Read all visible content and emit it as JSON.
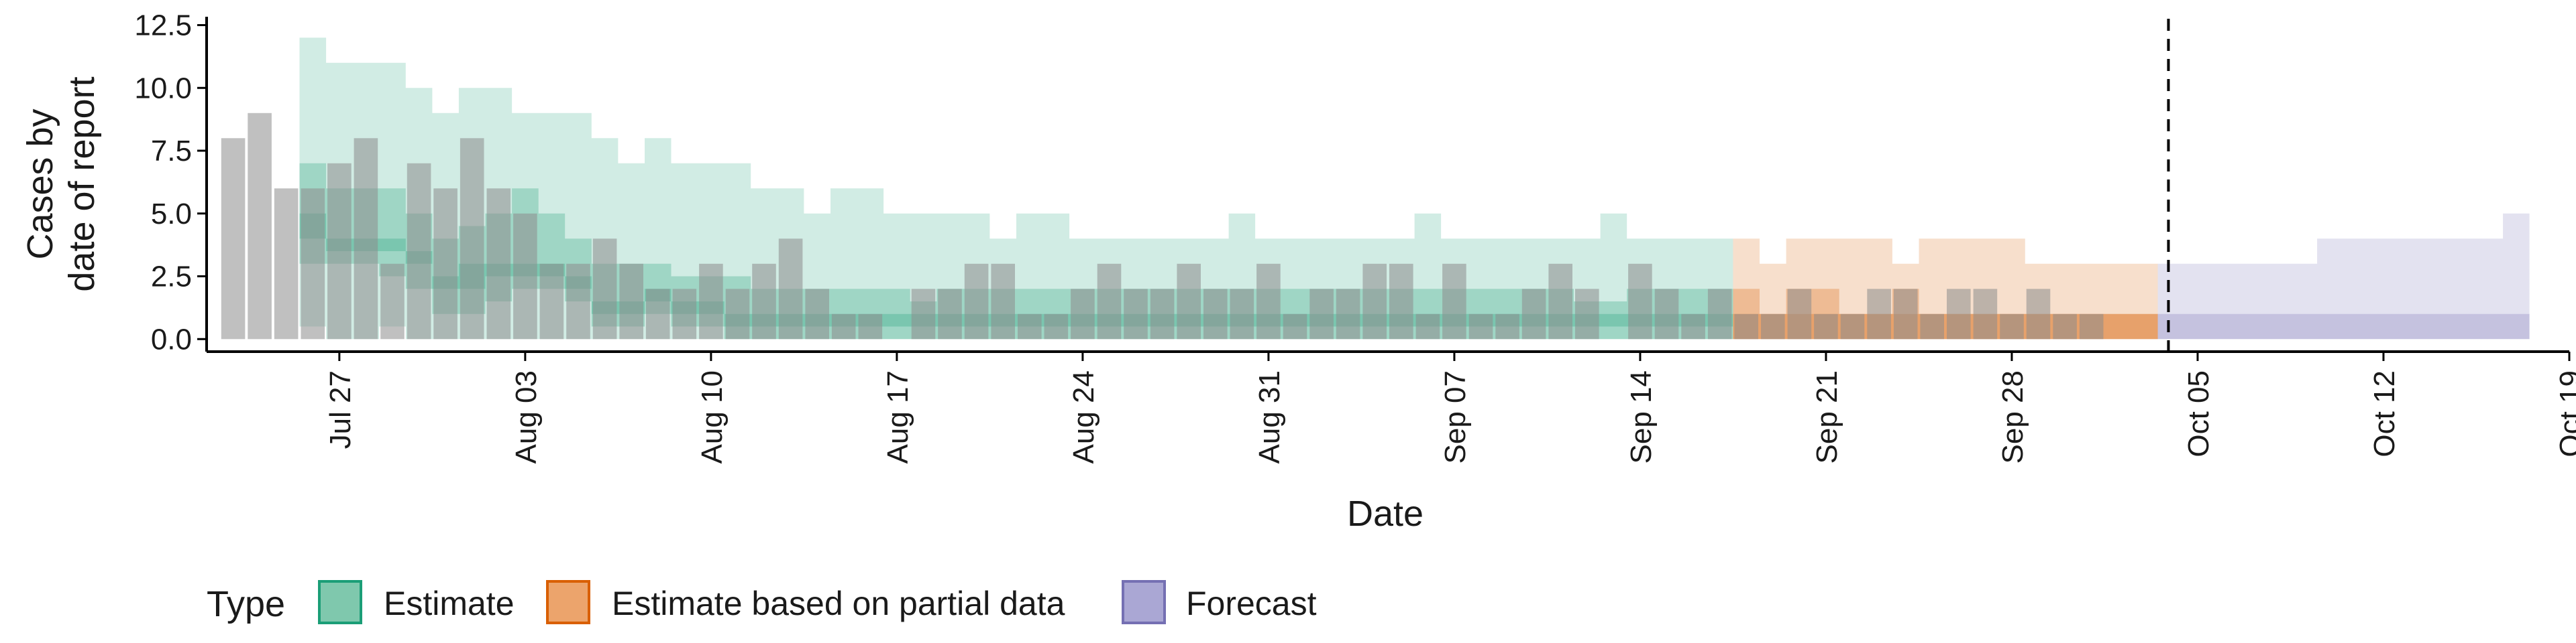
{
  "chart_data": {
    "type": "bar",
    "xlabel": "Date",
    "ylabel_lines": [
      "Cases by",
      "date of report"
    ],
    "ylim": [
      -0.5,
      12.7
    ],
    "yticks": [
      "0.0",
      "2.5",
      "5.0",
      "7.5",
      "10.0",
      "12.5"
    ],
    "x_start_date": "2020-07-23",
    "x_range_days": [
      -1.0,
      88.0
    ],
    "xticks": [
      {
        "day": 4,
        "label": "Jul 27"
      },
      {
        "day": 11,
        "label": "Aug 03"
      },
      {
        "day": 18,
        "label": "Aug 10"
      },
      {
        "day": 25,
        "label": "Aug 17"
      },
      {
        "day": 32,
        "label": "Aug 24"
      },
      {
        "day": 39,
        "label": "Aug 31"
      },
      {
        "day": 46,
        "label": "Sep 07"
      },
      {
        "day": 53,
        "label": "Sep 14"
      },
      {
        "day": 60,
        "label": "Sep 21"
      },
      {
        "day": 67,
        "label": "Sep 28"
      },
      {
        "day": 74,
        "label": "Oct 05"
      },
      {
        "day": 81,
        "label": "Oct 12"
      },
      {
        "day": 88,
        "label": "Oct 19"
      }
    ],
    "forecast_line_day": 72.9,
    "reported_cases": [
      8,
      9,
      6,
      6,
      7,
      8,
      3,
      7,
      6,
      8,
      6,
      5,
      3,
      3,
      4,
      3,
      2,
      2,
      3,
      2,
      3,
      4,
      2,
      1,
      1,
      0,
      2,
      2,
      3,
      3,
      1,
      1,
      2,
      3,
      2,
      2,
      3,
      2,
      2,
      3,
      1,
      2,
      2,
      3,
      3,
      1,
      3,
      1,
      1,
      2,
      3,
      2,
      0,
      3,
      2,
      1,
      2,
      1,
      1,
      2,
      1,
      1,
      2,
      2,
      1,
      2,
      2,
      1,
      2,
      1,
      1
    ],
    "series": [
      {
        "name": "Estimate",
        "color": "#1b9e77",
        "start_day": 3,
        "upper90": [
          12,
          11,
          11,
          11,
          10,
          9,
          10,
          10,
          9,
          9,
          9,
          8,
          7,
          8,
          7,
          7,
          7,
          6,
          6,
          5,
          6,
          6,
          5,
          5,
          5,
          5,
          4,
          5,
          5,
          4,
          4,
          4,
          4,
          4,
          4,
          5,
          4,
          4,
          4,
          4,
          4,
          4,
          5,
          4,
          4,
          4,
          4,
          4,
          4,
          5,
          4,
          4,
          4,
          4
        ],
        "lower90": [
          0.5,
          0,
          0,
          0.5,
          0,
          0,
          0,
          0,
          0,
          0,
          0,
          0,
          0,
          0,
          0,
          0,
          0,
          0,
          0,
          0,
          0,
          0,
          0,
          0,
          0,
          0,
          0,
          0,
          0,
          0,
          0,
          0,
          0,
          0,
          0,
          0,
          0,
          0,
          0,
          0,
          0,
          0,
          0,
          0,
          0,
          0,
          0,
          0,
          0,
          0,
          0,
          0,
          0,
          0
        ],
        "upper50": [
          7,
          6,
          6,
          6,
          5,
          4,
          4.5,
          5,
          6,
          5,
          4,
          3,
          3,
          3,
          2.5,
          2.5,
          2.5,
          2,
          2,
          2,
          2,
          2,
          2,
          1.5,
          2,
          2,
          2,
          2,
          2,
          2,
          2,
          2,
          2,
          2,
          2,
          2,
          2,
          2,
          2,
          2,
          2,
          2,
          2,
          2,
          2,
          2,
          2,
          2,
          1.5,
          1.5,
          2,
          2,
          2,
          2
        ],
        "lower50": [
          3,
          3,
          3,
          2.5,
          2,
          1,
          1,
          1.5,
          2,
          2,
          1.5,
          0.5,
          0.5,
          1,
          0.5,
          0.5,
          0,
          0,
          0,
          0,
          0,
          0,
          0,
          0,
          0,
          0,
          0,
          0,
          0,
          0,
          0,
          0,
          0,
          0,
          0,
          0,
          0,
          0,
          0,
          0,
          0,
          0,
          0,
          0,
          0,
          0,
          0,
          0,
          0,
          0,
          0,
          0,
          0,
          0
        ],
        "upper20": [
          5,
          4,
          4,
          4,
          3.5,
          2.5,
          3,
          3,
          3,
          3,
          2.5,
          1.5,
          1.5,
          2,
          1.5,
          1.5,
          1,
          1,
          1,
          1,
          1,
          1,
          1,
          1,
          1,
          1,
          1,
          1,
          1,
          1,
          1,
          1,
          1,
          1,
          1,
          1,
          1,
          1,
          1,
          1,
          1,
          1,
          1,
          1,
          1,
          1,
          1,
          1,
          1,
          1,
          1,
          1,
          1,
          1
        ],
        "lower20": [
          4,
          3.5,
          3.5,
          3.5,
          3,
          2,
          2,
          2.5,
          2.5,
          2.5,
          2,
          1,
          1,
          1.5,
          1,
          1,
          0.5,
          0.5,
          0.5,
          0.5,
          0.5,
          0.5,
          0.5,
          0.5,
          0.5,
          0.5,
          0.5,
          0.5,
          0.5,
          0.5,
          0.5,
          0.5,
          0.5,
          0.5,
          0.5,
          0.5,
          0.5,
          0.5,
          0.5,
          0.5,
          0.5,
          0.5,
          0.5,
          0.5,
          0.5,
          0.5,
          0.5,
          0.5,
          0.5,
          0.5,
          0.5,
          0.5,
          0.5,
          0.5
        ]
      },
      {
        "name": "Estimate based on partial data",
        "color": "#d95f02",
        "start_day": 57,
        "upper90": [
          4,
          3,
          4,
          4,
          4,
          4,
          3,
          4,
          4,
          4,
          4,
          3,
          3,
          3,
          3,
          3
        ],
        "lower90": [
          0,
          0,
          0,
          0,
          0,
          0,
          0,
          0,
          0,
          0,
          0,
          0,
          0,
          0,
          0,
          0
        ],
        "upper50": [
          2,
          1,
          2,
          2,
          1,
          1,
          2,
          1,
          1,
          1,
          1,
          1,
          1,
          1,
          1,
          1
        ],
        "lower50": [
          0,
          0,
          0,
          0,
          0,
          0,
          0,
          0,
          0,
          0,
          0,
          0,
          0,
          0,
          0,
          0
        ],
        "upper20": [
          1,
          1,
          1,
          1,
          1,
          1,
          1,
          1,
          1,
          1,
          1,
          1,
          1,
          1,
          1,
          1
        ],
        "lower20": [
          0,
          0,
          0,
          0,
          0,
          0,
          0,
          0,
          0,
          0,
          0,
          0,
          0,
          0,
          0,
          0
        ]
      },
      {
        "name": "Forecast",
        "color": "#7570b3",
        "start_day": 73,
        "upper90": [
          3,
          3,
          3,
          3,
          3,
          3,
          4,
          4,
          4,
          4,
          4,
          4,
          4,
          5
        ],
        "lower90": [
          0,
          0,
          0,
          0,
          0,
          0,
          0,
          0,
          0,
          0,
          0,
          0,
          0,
          0
        ],
        "upper50": [
          1,
          1,
          1,
          1,
          1,
          1,
          1,
          1,
          1,
          1,
          1,
          1,
          1,
          1
        ],
        "lower50": [
          0,
          0,
          0,
          0,
          0,
          0,
          0,
          0,
          0,
          0,
          0,
          0,
          0,
          0
        ]
      }
    ],
    "legend": {
      "title": "Type",
      "position": "bottom",
      "items": [
        "Estimate",
        "Estimate based on partial data",
        "Forecast"
      ]
    }
  }
}
